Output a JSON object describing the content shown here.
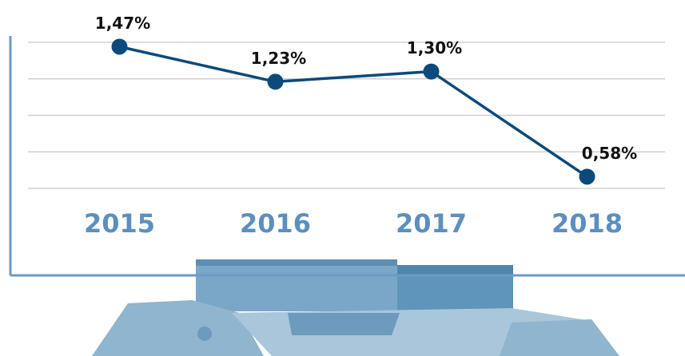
{
  "chart_data": {
    "type": "line",
    "categories": [
      "2015",
      "2016",
      "2017",
      "2018"
    ],
    "series": [
      {
        "color": "#0b4a7a",
        "values": [
          1.47,
          1.23,
          1.3,
          0.58
        ],
        "value_labels": [
          "1,47%",
          "1,23%",
          "1,30%",
          "0,58%"
        ]
      }
    ],
    "ylim": [
      0.5,
      1.5
    ],
    "yticks": [
      0.5,
      0.75,
      1,
      1.25,
      1.5
    ],
    "grid": true
  }
}
